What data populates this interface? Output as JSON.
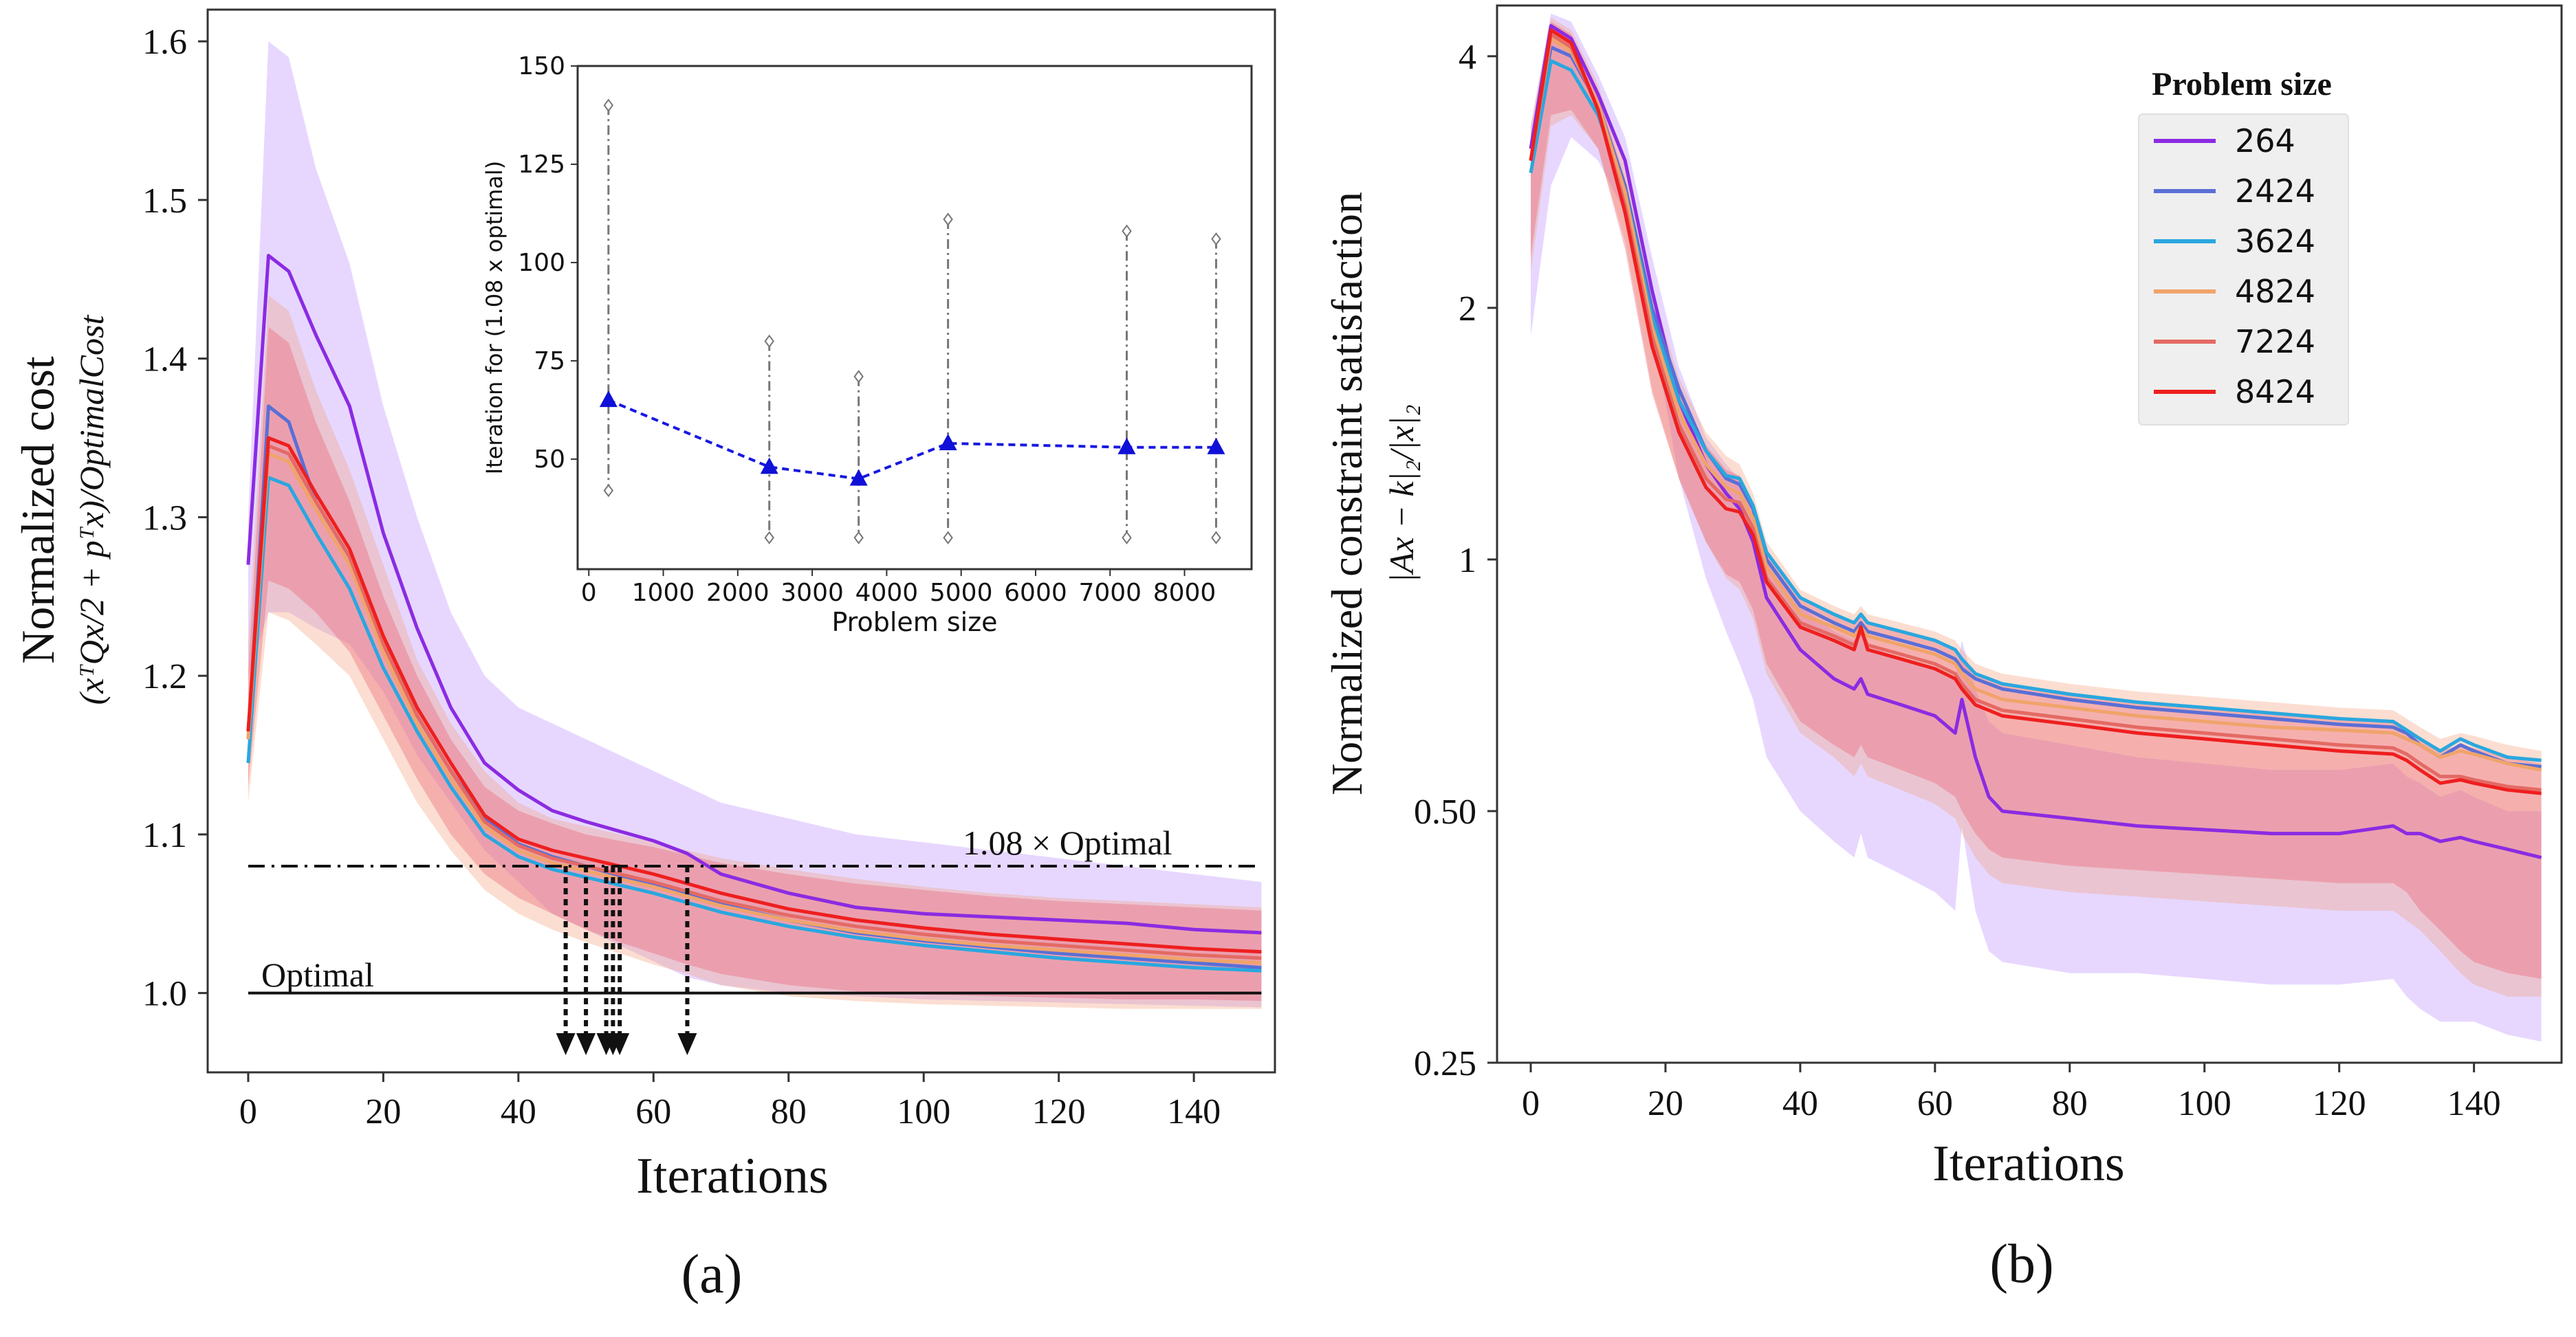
{
  "chart_data": [
    {
      "id": "a",
      "type": "line",
      "caption": "(a)",
      "ylabel": "Normalized cost",
      "ylabel2": "(xᵀQx/2 + pᵀx)/OptimalCost",
      "xlabel": "Iterations",
      "xlim": [
        -6,
        152
      ],
      "ylim": [
        0.95,
        1.62
      ],
      "xticks": [
        "0",
        "20",
        "40",
        "60",
        "80",
        "100",
        "120",
        "140"
      ],
      "yticks": [
        "1.0",
        "1.1",
        "1.2",
        "1.3",
        "1.4",
        "1.5",
        "1.6"
      ],
      "ref_lines": [
        {
          "name": "1.08 × Optimal",
          "y": 1.08,
          "style": "dashdot"
        },
        {
          "name": "Optimal",
          "y": 1.0,
          "style": "solid"
        }
      ],
      "arrows_x": [
        47,
        50,
        53,
        54,
        55,
        65
      ],
      "x": [
        0,
        3,
        6,
        10,
        15,
        20,
        25,
        30,
        35,
        40,
        45,
        50,
        55,
        60,
        65,
        70,
        80,
        90,
        100,
        110,
        120,
        130,
        140,
        150
      ],
      "series": [
        {
          "name": "264",
          "color": "#8b2be2",
          "values": [
            1.27,
            1.465,
            1.455,
            1.415,
            1.37,
            1.29,
            1.23,
            1.18,
            1.145,
            1.128,
            1.115,
            1.108,
            1.102,
            1.096,
            1.088,
            1.075,
            1.063,
            1.054,
            1.05,
            1.048,
            1.046,
            1.044,
            1.04,
            1.038
          ]
        },
        {
          "name": "2424",
          "color": "#5a6fd6",
          "values": [
            1.16,
            1.37,
            1.36,
            1.31,
            1.275,
            1.22,
            1.175,
            1.14,
            1.11,
            1.094,
            1.086,
            1.08,
            1.074,
            1.068,
            1.062,
            1.056,
            1.046,
            1.038,
            1.033,
            1.029,
            1.025,
            1.022,
            1.019,
            1.016
          ]
        },
        {
          "name": "3624",
          "color": "#2aa7df",
          "values": [
            1.145,
            1.325,
            1.32,
            1.29,
            1.255,
            1.205,
            1.165,
            1.13,
            1.1,
            1.086,
            1.078,
            1.073,
            1.068,
            1.063,
            1.057,
            1.051,
            1.042,
            1.035,
            1.03,
            1.026,
            1.022,
            1.019,
            1.016,
            1.014
          ]
        },
        {
          "name": "4824",
          "color": "#f0a46a",
          "values": [
            1.16,
            1.34,
            1.335,
            1.305,
            1.27,
            1.215,
            1.17,
            1.135,
            1.105,
            1.09,
            1.082,
            1.077,
            1.072,
            1.067,
            1.061,
            1.055,
            1.046,
            1.039,
            1.034,
            1.03,
            1.027,
            1.024,
            1.021,
            1.019
          ]
        },
        {
          "name": "7224",
          "color": "#e46a64",
          "values": [
            1.165,
            1.345,
            1.34,
            1.31,
            1.275,
            1.22,
            1.175,
            1.14,
            1.108,
            1.093,
            1.085,
            1.08,
            1.075,
            1.07,
            1.064,
            1.058,
            1.049,
            1.042,
            1.037,
            1.033,
            1.03,
            1.027,
            1.024,
            1.022
          ]
        },
        {
          "name": "8424",
          "color": "#ee1f1f",
          "values": [
            1.165,
            1.35,
            1.345,
            1.315,
            1.28,
            1.225,
            1.18,
            1.145,
            1.112,
            1.097,
            1.09,
            1.085,
            1.08,
            1.075,
            1.069,
            1.063,
            1.053,
            1.046,
            1.041,
            1.037,
            1.034,
            1.031,
            1.028,
            1.026
          ]
        }
      ],
      "bands": [
        {
          "color": "#c9a6ff",
          "opacity": 0.45,
          "upper": [
            1.3,
            1.6,
            1.59,
            1.52,
            1.46,
            1.37,
            1.3,
            1.24,
            1.2,
            1.18,
            1.17,
            1.16,
            1.15,
            1.14,
            1.13,
            1.12,
            1.11,
            1.1,
            1.095,
            1.09,
            1.085,
            1.08,
            1.075,
            1.07
          ],
          "lower": [
            1.2,
            1.24,
            1.24,
            1.23,
            1.22,
            1.19,
            1.15,
            1.12,
            1.09,
            1.07,
            1.05,
            1.04,
            1.03,
            1.02,
            1.01,
            1.005,
            1.0,
            0.998,
            0.996,
            0.995,
            0.994,
            0.993,
            0.992,
            0.991
          ]
        },
        {
          "color": "#f3a17a",
          "opacity": 0.35,
          "upper": [
            1.22,
            1.44,
            1.43,
            1.38,
            1.33,
            1.27,
            1.21,
            1.17,
            1.14,
            1.12,
            1.11,
            1.105,
            1.1,
            1.095,
            1.09,
            1.085,
            1.078,
            1.072,
            1.067,
            1.063,
            1.06,
            1.058,
            1.056,
            1.054
          ],
          "lower": [
            1.12,
            1.24,
            1.235,
            1.22,
            1.2,
            1.16,
            1.12,
            1.09,
            1.065,
            1.05,
            1.04,
            1.032,
            1.025,
            1.018,
            1.012,
            1.005,
            0.998,
            0.995,
            0.993,
            0.992,
            0.991,
            0.99,
            0.99,
            0.99
          ]
        },
        {
          "color": "#ea5b6e",
          "opacity": 0.35,
          "upper": [
            1.2,
            1.42,
            1.41,
            1.36,
            1.31,
            1.25,
            1.2,
            1.16,
            1.13,
            1.115,
            1.107,
            1.1,
            1.096,
            1.092,
            1.087,
            1.082,
            1.075,
            1.069,
            1.065,
            1.061,
            1.058,
            1.056,
            1.054,
            1.052
          ],
          "lower": [
            1.13,
            1.26,
            1.255,
            1.24,
            1.215,
            1.175,
            1.135,
            1.1,
            1.075,
            1.06,
            1.05,
            1.04,
            1.032,
            1.025,
            1.018,
            1.012,
            1.005,
            1.001,
            0.999,
            0.998,
            0.997,
            0.996,
            0.996,
            0.995
          ]
        }
      ],
      "inset": {
        "type": "scatter",
        "ylabel": "Iteration for (1.08 x optimal)",
        "xlabel": "Problem size",
        "xlim": [
          -150,
          8900
        ],
        "ylim": [
          22,
          150
        ],
        "xticks": [
          "0",
          "1000",
          "2000",
          "3000",
          "4000",
          "5000",
          "6000",
          "7000",
          "8000"
        ],
        "yticks": [
          "50",
          "75",
          "100",
          "125",
          "150"
        ],
        "x": [
          264,
          2424,
          3624,
          4824,
          7224,
          8424
        ],
        "values": [
          65,
          48,
          45,
          54,
          53,
          53
        ],
        "max": [
          140,
          80,
          71,
          111,
          108,
          106
        ],
        "min": [
          42,
          30,
          30,
          30,
          30,
          30
        ]
      }
    },
    {
      "id": "b",
      "type": "line",
      "caption": "(b)",
      "ylabel": "Normalized constraint satisfaction",
      "ylabel2": "|Ax − k|₂/|x|₂",
      "xlabel": "Iterations",
      "xlim": [
        -5,
        153
      ],
      "ylim": [
        0.25,
        4.6
      ],
      "yscale": "log",
      "xticks": [
        "0",
        "20",
        "40",
        "60",
        "80",
        "100",
        "120",
        "140"
      ],
      "yticks": [
        "0.25",
        "0.50",
        "1",
        "2",
        "4"
      ],
      "legend_title": "Problem size",
      "legend_position": "top-right",
      "x": [
        0,
        3,
        6,
        10,
        14,
        18,
        22,
        26,
        29,
        31,
        33,
        35,
        40,
        45,
        48,
        49,
        50,
        55,
        60,
        63,
        64,
        66,
        68,
        70,
        80,
        90,
        100,
        110,
        120,
        128,
        130,
        132,
        135,
        138,
        140,
        145,
        150
      ],
      "series": [
        {
          "name": "264",
          "color": "#8b2be2",
          "values": [
            3.1,
            4.35,
            4.2,
            3.6,
            3.0,
            2.1,
            1.55,
            1.3,
            1.2,
            1.15,
            1.05,
            0.9,
            0.78,
            0.72,
            0.7,
            0.72,
            0.69,
            0.67,
            0.65,
            0.62,
            0.68,
            0.58,
            0.52,
            0.5,
            0.49,
            0.48,
            0.475,
            0.47,
            0.47,
            0.48,
            0.47,
            0.47,
            0.46,
            0.465,
            0.46,
            0.45,
            0.44
          ]
        },
        {
          "name": "2424",
          "color": "#5a6fd6",
          "values": [
            3.0,
            4.1,
            4.0,
            3.5,
            2.8,
            2.0,
            1.6,
            1.35,
            1.25,
            1.23,
            1.15,
            1.0,
            0.88,
            0.84,
            0.82,
            0.84,
            0.82,
            0.8,
            0.78,
            0.76,
            0.74,
            0.72,
            0.71,
            0.7,
            0.68,
            0.665,
            0.655,
            0.645,
            0.635,
            0.63,
            0.62,
            0.6,
            0.58,
            0.6,
            0.59,
            0.57,
            0.565
          ]
        },
        {
          "name": "3624",
          "color": "#2aa7df",
          "values": [
            2.9,
            3.95,
            3.85,
            3.4,
            2.75,
            1.95,
            1.55,
            1.35,
            1.26,
            1.25,
            1.16,
            1.02,
            0.9,
            0.86,
            0.84,
            0.86,
            0.84,
            0.82,
            0.8,
            0.78,
            0.76,
            0.73,
            0.72,
            0.71,
            0.69,
            0.675,
            0.665,
            0.655,
            0.645,
            0.64,
            0.625,
            0.61,
            0.59,
            0.61,
            0.6,
            0.58,
            0.575
          ]
        },
        {
          "name": "4824",
          "color": "#f0a46a",
          "values": [
            3.0,
            4.2,
            4.05,
            3.5,
            2.75,
            1.9,
            1.5,
            1.3,
            1.22,
            1.2,
            1.12,
            0.98,
            0.86,
            0.83,
            0.81,
            0.83,
            0.81,
            0.79,
            0.77,
            0.75,
            0.73,
            0.7,
            0.69,
            0.68,
            0.665,
            0.65,
            0.64,
            0.63,
            0.625,
            0.62,
            0.61,
            0.6,
            0.58,
            0.59,
            0.585,
            0.57,
            0.56
          ]
        },
        {
          "name": "7224",
          "color": "#e46a64",
          "values": [
            3.0,
            4.25,
            4.1,
            3.45,
            2.65,
            1.85,
            1.45,
            1.25,
            1.18,
            1.17,
            1.09,
            0.95,
            0.84,
            0.81,
            0.79,
            0.82,
            0.79,
            0.77,
            0.75,
            0.73,
            0.71,
            0.68,
            0.67,
            0.66,
            0.645,
            0.63,
            0.62,
            0.61,
            0.6,
            0.595,
            0.585,
            0.57,
            0.55,
            0.55,
            0.545,
            0.535,
            0.53
          ]
        },
        {
          "name": "8424",
          "color": "#ee1f1f",
          "values": [
            3.0,
            4.3,
            4.15,
            3.45,
            2.6,
            1.8,
            1.42,
            1.22,
            1.15,
            1.14,
            1.07,
            0.94,
            0.83,
            0.8,
            0.78,
            0.83,
            0.78,
            0.76,
            0.74,
            0.72,
            0.7,
            0.67,
            0.66,
            0.65,
            0.635,
            0.62,
            0.61,
            0.6,
            0.59,
            0.585,
            0.575,
            0.56,
            0.54,
            0.545,
            0.54,
            0.53,
            0.525
          ]
        }
      ],
      "bands": [
        {
          "color": "#c9a6ff",
          "opacity": 0.45,
          "upper": [
            3.3,
            4.5,
            4.4,
            3.8,
            3.2,
            2.3,
            1.7,
            1.4,
            1.3,
            1.25,
            1.15,
            1.0,
            0.88,
            0.82,
            0.8,
            0.82,
            0.79,
            0.76,
            0.74,
            0.72,
            0.8,
            0.7,
            0.64,
            0.62,
            0.6,
            0.58,
            0.57,
            0.56,
            0.56,
            0.57,
            0.55,
            0.54,
            0.52,
            0.53,
            0.52,
            0.5,
            0.5
          ],
          "lower": [
            1.85,
            2.8,
            3.2,
            3.0,
            2.6,
            1.9,
            1.25,
            0.95,
            0.82,
            0.75,
            0.68,
            0.58,
            0.5,
            0.46,
            0.44,
            0.47,
            0.44,
            0.42,
            0.4,
            0.38,
            0.48,
            0.38,
            0.34,
            0.33,
            0.32,
            0.32,
            0.315,
            0.31,
            0.31,
            0.315,
            0.3,
            0.29,
            0.28,
            0.28,
            0.28,
            0.27,
            0.265
          ]
        },
        {
          "color": "#f3a17a",
          "opacity": 0.35,
          "upper": [
            3.3,
            4.45,
            4.3,
            3.7,
            2.95,
            2.1,
            1.65,
            1.42,
            1.33,
            1.3,
            1.2,
            1.05,
            0.92,
            0.88,
            0.86,
            0.88,
            0.86,
            0.84,
            0.82,
            0.8,
            0.78,
            0.75,
            0.74,
            0.73,
            0.71,
            0.695,
            0.685,
            0.675,
            0.665,
            0.66,
            0.645,
            0.63,
            0.61,
            0.62,
            0.615,
            0.6,
            0.59
          ],
          "lower": [
            2.2,
            3.3,
            3.4,
            3.1,
            2.4,
            1.6,
            1.25,
            1.05,
            0.95,
            0.92,
            0.85,
            0.73,
            0.62,
            0.58,
            0.55,
            0.57,
            0.55,
            0.53,
            0.51,
            0.49,
            0.47,
            0.44,
            0.42,
            0.41,
            0.4,
            0.395,
            0.39,
            0.385,
            0.38,
            0.38,
            0.37,
            0.36,
            0.34,
            0.32,
            0.31,
            0.3,
            0.3
          ]
        },
        {
          "color": "#ea5b6e",
          "opacity": 0.35,
          "upper": [
            3.2,
            4.4,
            4.25,
            3.6,
            2.85,
            2.0,
            1.58,
            1.37,
            1.28,
            1.26,
            1.17,
            1.02,
            0.9,
            0.86,
            0.84,
            0.86,
            0.84,
            0.82,
            0.8,
            0.78,
            0.76,
            0.73,
            0.72,
            0.71,
            0.69,
            0.675,
            0.665,
            0.655,
            0.645,
            0.64,
            0.625,
            0.61,
            0.59,
            0.6,
            0.595,
            0.58,
            0.57
          ],
          "lower": [
            2.3,
            3.4,
            3.45,
            3.1,
            2.35,
            1.58,
            1.25,
            1.05,
            0.96,
            0.94,
            0.87,
            0.75,
            0.64,
            0.6,
            0.58,
            0.6,
            0.58,
            0.56,
            0.54,
            0.52,
            0.5,
            0.47,
            0.45,
            0.44,
            0.43,
            0.425,
            0.42,
            0.415,
            0.41,
            0.41,
            0.4,
            0.38,
            0.36,
            0.34,
            0.33,
            0.32,
            0.315
          ]
        }
      ]
    }
  ]
}
